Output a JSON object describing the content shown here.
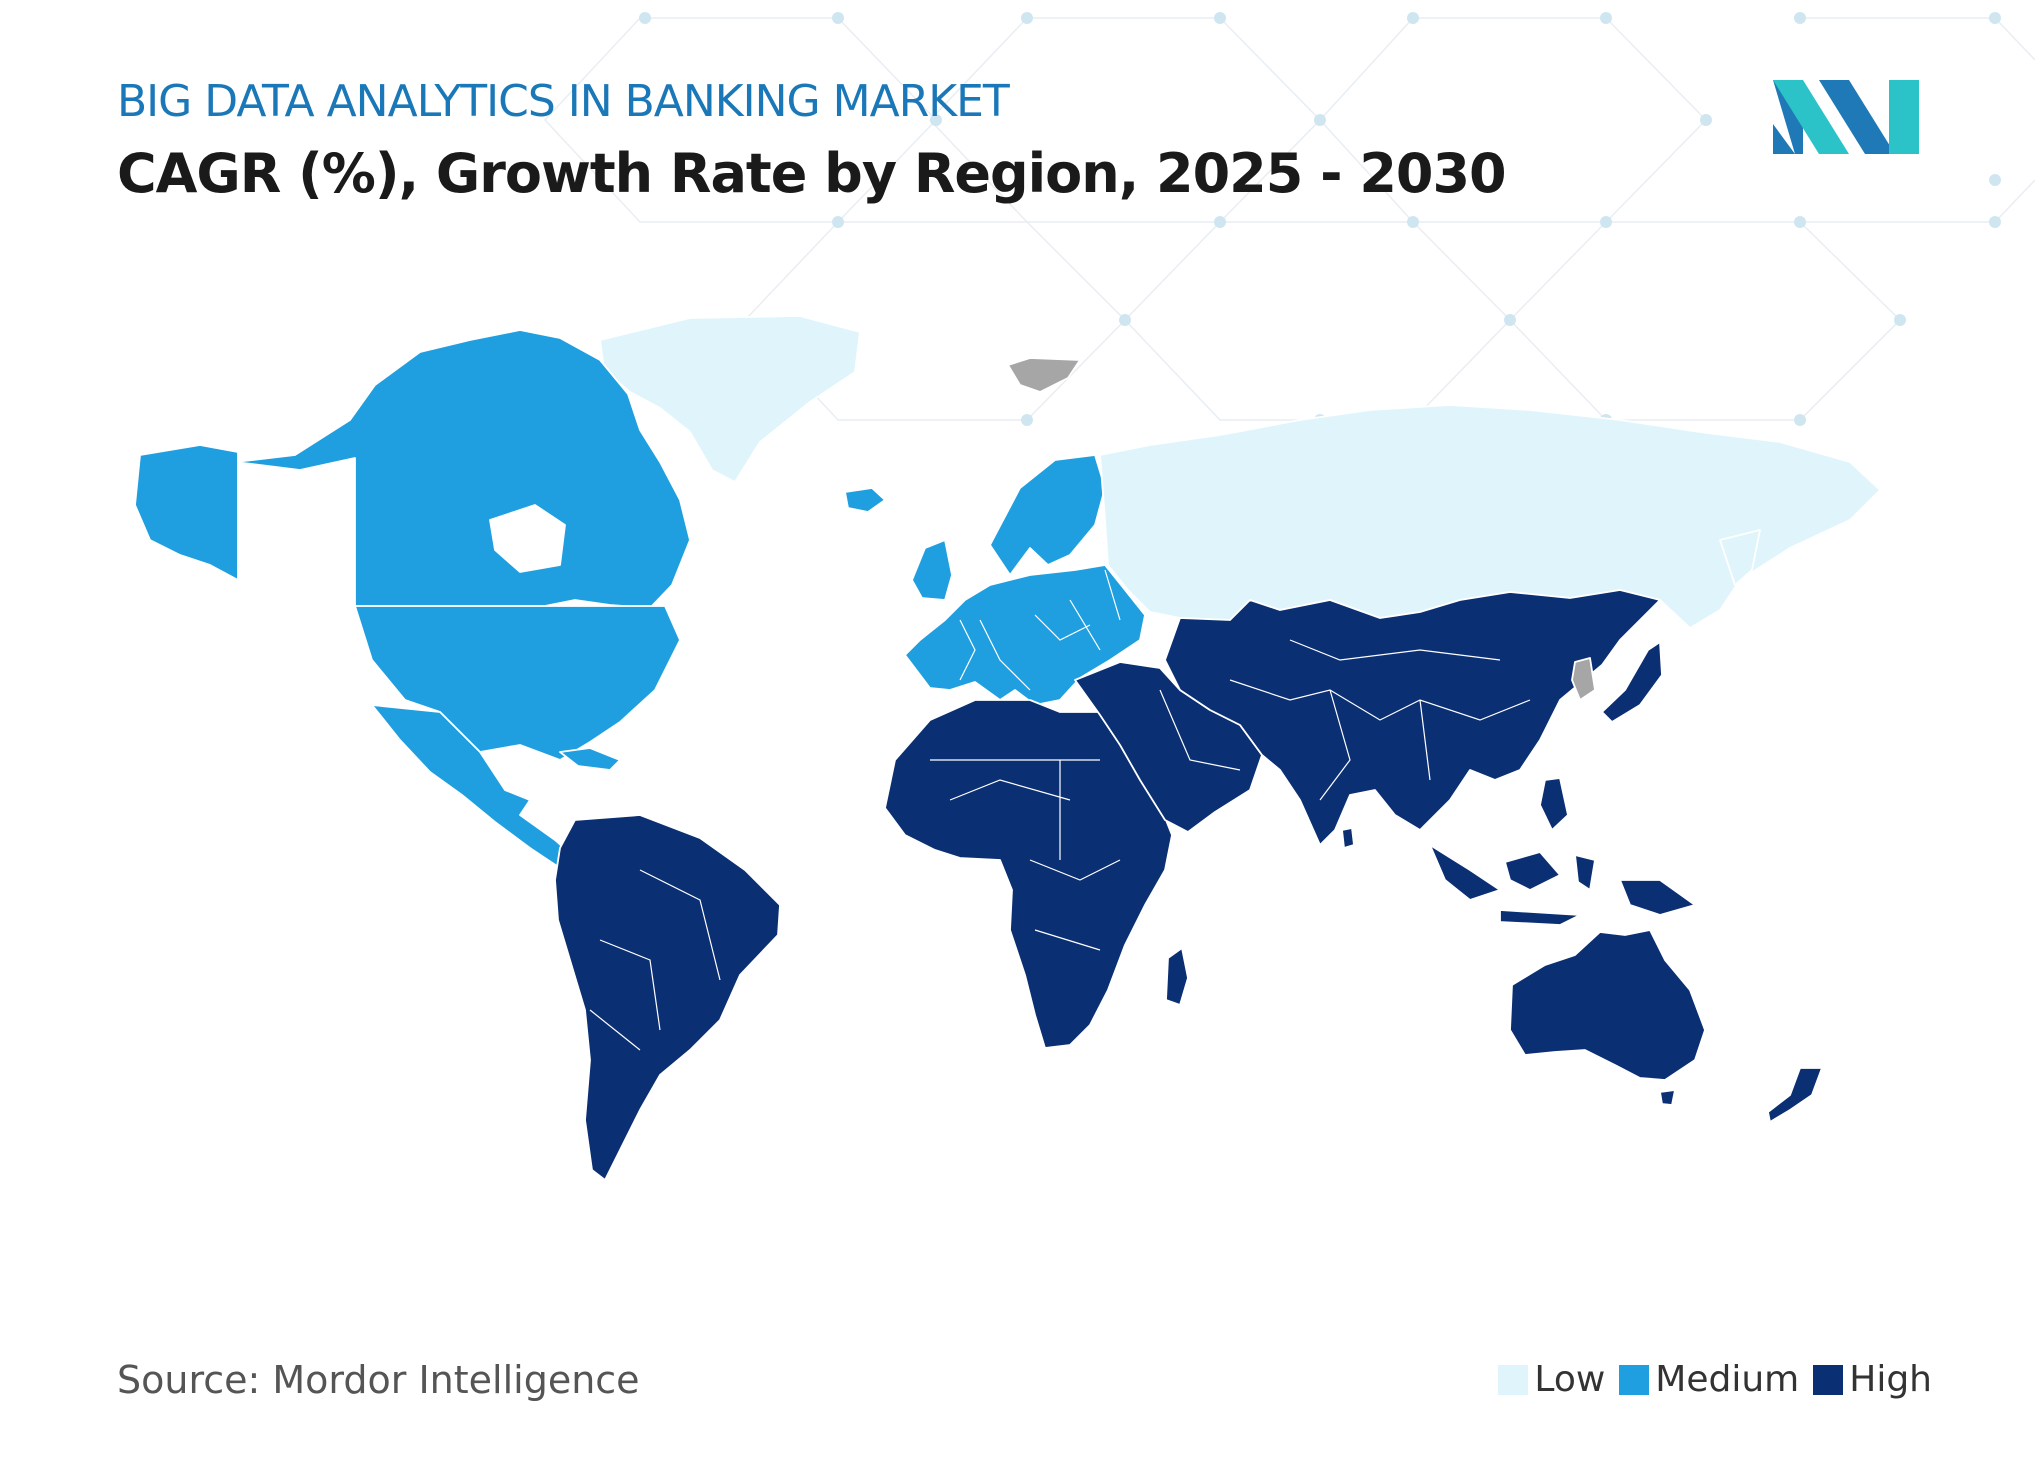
{
  "header": {
    "subtitle": "BIG DATA ANALYTICS IN BANKING MARKET",
    "title": "CAGR (%), Growth Rate by Region, 2025 - 2030"
  },
  "footer": {
    "source": "Source: Mordor Intelligence"
  },
  "legend": [
    {
      "key": "low",
      "label": "Low",
      "color": "#dff5fb"
    },
    {
      "key": "medium",
      "label": "Medium",
      "color": "#1f9fe0"
    },
    {
      "key": "high",
      "label": "High",
      "color": "#0b2f73"
    }
  ],
  "regions": [
    {
      "name": "North America",
      "level": "medium"
    },
    {
      "name": "Europe",
      "level": "medium"
    },
    {
      "name": "Russia",
      "level": "low"
    },
    {
      "name": "Greenland",
      "level": "low"
    },
    {
      "name": "South America",
      "level": "high"
    },
    {
      "name": "Africa",
      "level": "high"
    },
    {
      "name": "Middle East",
      "level": "high"
    },
    {
      "name": "Asia",
      "level": "high"
    },
    {
      "name": "Australia and New Zealand",
      "level": "high"
    }
  ],
  "colors": {
    "low": "#dff5fb",
    "medium": "#1f9fe0",
    "high": "#0b2f73",
    "no_data": "#a6a6a6",
    "logo_dark": "#1f79b6",
    "logo_light": "#2cc3c8"
  }
}
